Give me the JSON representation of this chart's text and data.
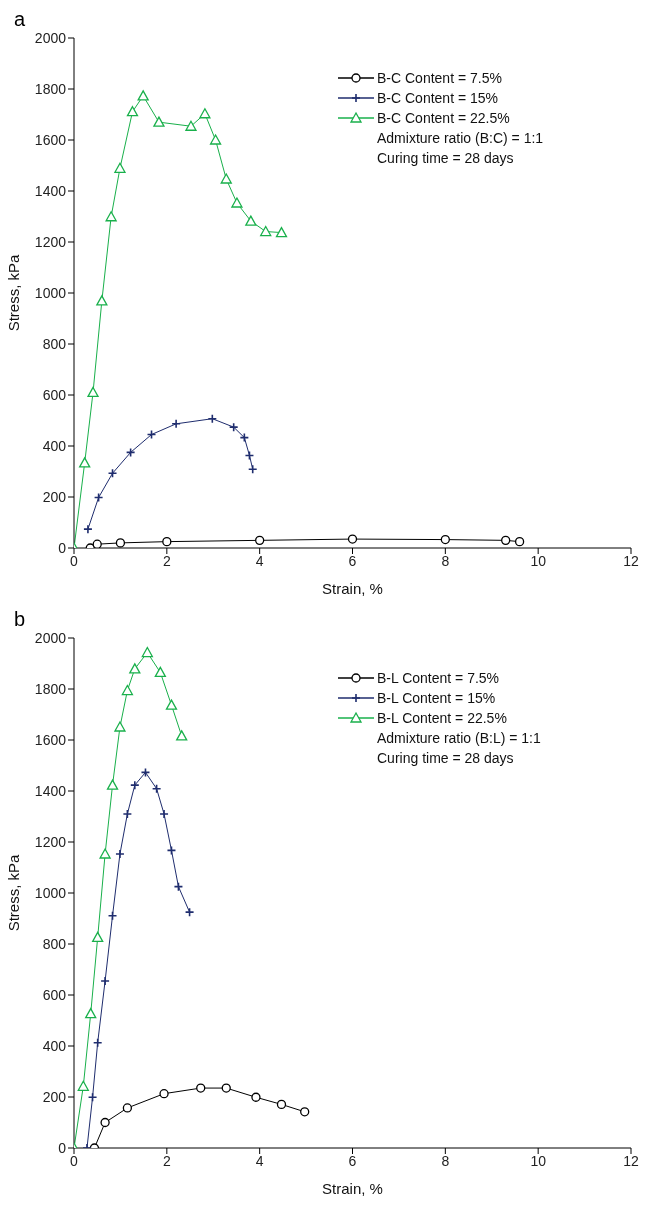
{
  "chart_data": [
    {
      "type": "line",
      "title": "a",
      "xlabel": "Strain, %",
      "ylabel": "Stress, kPa",
      "xlim": [
        0,
        12
      ],
      "xticks": [
        0,
        2,
        4,
        6,
        8,
        10,
        12
      ],
      "ylim": [
        0,
        2000
      ],
      "yticks": [
        0,
        200,
        400,
        600,
        800,
        1000,
        1200,
        1400,
        1600,
        1800,
        2000
      ],
      "grid": false,
      "legend": "top right",
      "annotations": [
        "Admixture ratio (B:C) = 1:1",
        "Curing time = 28 days"
      ],
      "series": [
        {
          "name": "B-C Content = 7.5%",
          "color": "#000000",
          "marker": "circle",
          "x": [
            0.35,
            0.5,
            1,
            2,
            4,
            6,
            8,
            9.3,
            9.6
          ],
          "values": [
            0,
            15,
            20,
            25,
            30,
            35,
            33,
            30,
            25
          ]
        },
        {
          "name": "B-C Content = 15%",
          "color": "#1f2d6e",
          "marker": "cross",
          "x": [
            0.3,
            0.53,
            0.83,
            1.22,
            1.67,
            2.2,
            2.98,
            3.44,
            3.67,
            3.78,
            3.85
          ],
          "values": [
            74,
            198,
            293,
            375,
            445,
            487,
            507,
            474,
            433,
            363,
            309
          ]
        },
        {
          "name": "B-C Content = 22.5%",
          "color": "#19b04b",
          "marker": "triangle",
          "x": [
            0,
            0.23,
            0.41,
            0.6,
            0.8,
            0.99,
            1.26,
            1.49,
            1.83,
            2.52,
            2.82,
            3.05,
            3.28,
            3.51,
            3.81,
            4.13,
            4.47
          ],
          "values": [
            0,
            334,
            610,
            969,
            1299,
            1489,
            1711,
            1773,
            1670,
            1654,
            1703,
            1600,
            1447,
            1353,
            1282,
            1241,
            1237
          ]
        }
      ]
    },
    {
      "type": "line",
      "title": "b",
      "xlabel": "Strain, %",
      "ylabel": "Stress, kPa",
      "xlim": [
        0,
        12
      ],
      "xticks": [
        0,
        2,
        4,
        6,
        8,
        10,
        12
      ],
      "ylim": [
        0,
        2000
      ],
      "yticks": [
        0,
        200,
        400,
        600,
        800,
        1000,
        1200,
        1400,
        1600,
        1800,
        2000
      ],
      "grid": false,
      "legend": "top right",
      "annotations": [
        "Admixture ratio (B:L) = 1:1",
        "Curing time = 28 days"
      ],
      "series": [
        {
          "name": "B-L Content = 7.5%",
          "color": "#000000",
          "marker": "circle",
          "x": [
            0.44,
            0.67,
            1.15,
            1.94,
            2.73,
            3.28,
            3.92,
            4.47,
            4.97
          ],
          "values": [
            0,
            100,
            157,
            213,
            235,
            235,
            199,
            171,
            142
          ]
        },
        {
          "name": "B-L Content = 15%",
          "color": "#1f2d6e",
          "marker": "cross",
          "x": [
            0.28,
            0.4,
            0.51,
            0.67,
            0.83,
            0.99,
            1.15,
            1.31,
            1.54,
            1.78,
            1.94,
            2.1,
            2.25,
            2.49
          ],
          "values": [
            0,
            199,
            413,
            655,
            911,
            1153,
            1310,
            1423,
            1473,
            1409,
            1310,
            1167,
            1025,
            925
          ]
        },
        {
          "name": "B-L Content = 22.5%",
          "color": "#19b04b",
          "marker": "triangle",
          "x": [
            0,
            0.2,
            0.36,
            0.51,
            0.67,
            0.83,
            0.99,
            1.15,
            1.31,
            1.58,
            1.86,
            2.1,
            2.32
          ],
          "values": [
            0,
            242,
            527,
            826,
            1153,
            1423,
            1651,
            1794,
            1879,
            1943,
            1865,
            1737,
            1616
          ]
        }
      ]
    }
  ]
}
